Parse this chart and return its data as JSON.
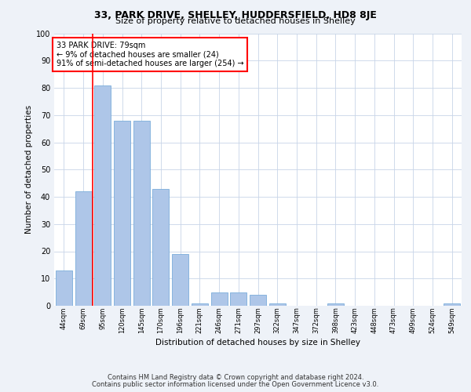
{
  "title1": "33, PARK DRIVE, SHELLEY, HUDDERSFIELD, HD8 8JE",
  "title2": "Size of property relative to detached houses in Shelley",
  "xlabel": "Distribution of detached houses by size in Shelley",
  "ylabel": "Number of detached properties",
  "categories": [
    "44sqm",
    "69sqm",
    "95sqm",
    "120sqm",
    "145sqm",
    "170sqm",
    "196sqm",
    "221sqm",
    "246sqm",
    "271sqm",
    "297sqm",
    "322sqm",
    "347sqm",
    "372sqm",
    "398sqm",
    "423sqm",
    "448sqm",
    "473sqm",
    "499sqm",
    "524sqm",
    "549sqm"
  ],
  "values": [
    13,
    42,
    81,
    68,
    68,
    43,
    19,
    1,
    5,
    5,
    4,
    1,
    0,
    0,
    1,
    0,
    0,
    0,
    0,
    0,
    1
  ],
  "bar_color": "#aec6e8",
  "bar_edge_color": "#7aadda",
  "red_line_x": 1.5,
  "annotation_text": "33 PARK DRIVE: 79sqm\n← 9% of detached houses are smaller (24)\n91% of semi-detached houses are larger (254) →",
  "ylim": [
    0,
    100
  ],
  "yticks": [
    0,
    10,
    20,
    30,
    40,
    50,
    60,
    70,
    80,
    90,
    100
  ],
  "footer1": "Contains HM Land Registry data © Crown copyright and database right 2024.",
  "footer2": "Contains public sector information licensed under the Open Government Licence v3.0.",
  "bg_color": "#eef2f8",
  "plot_bg_color": "#ffffff",
  "grid_color": "#c8d4e8"
}
